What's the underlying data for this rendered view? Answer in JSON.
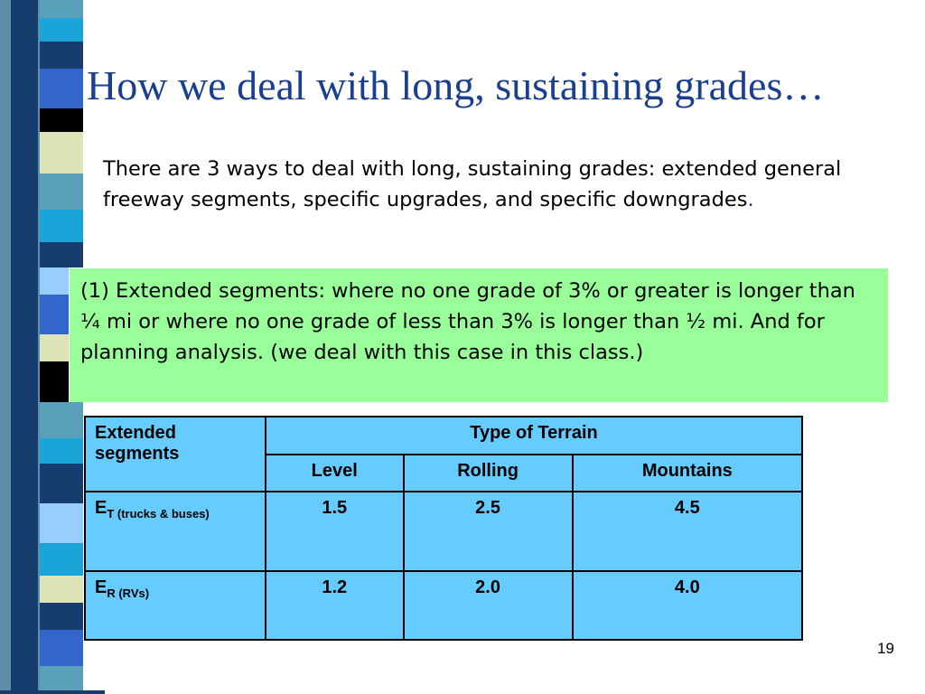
{
  "slide": {
    "title": "How we deal with long, sustaining grades…",
    "intro_text": "There are 3 ways to deal with long, sustaining grades: extended general freeway segments, specific upgrades, and specific downgrades",
    "intro_end": ".",
    "green_box_text": "(1) Extended segments: where no one grade of 3% or greater is longer than ¼ mi or where no one grade of less than 3% is longer than ½ mi.  And for planning analysis. (we deal with this case in this class.)",
    "page_number": "19"
  },
  "table": {
    "corner_header": "Extended segments",
    "group_header": "Type of Terrain",
    "columns": [
      "Level",
      "Rolling",
      "Mountains"
    ],
    "rows": [
      {
        "symbol": "E",
        "subscript": "T (trucks & buses)",
        "values": [
          "1.5",
          "2.5",
          "4.5"
        ]
      },
      {
        "symbol": "E",
        "subscript": "R (RVs)",
        "values": [
          "1.2",
          "2.0",
          "4.0"
        ]
      }
    ]
  },
  "colors": {
    "title": "#1b3f8f",
    "green_box": "#99ff99",
    "table_fill": "#66ccff"
  }
}
